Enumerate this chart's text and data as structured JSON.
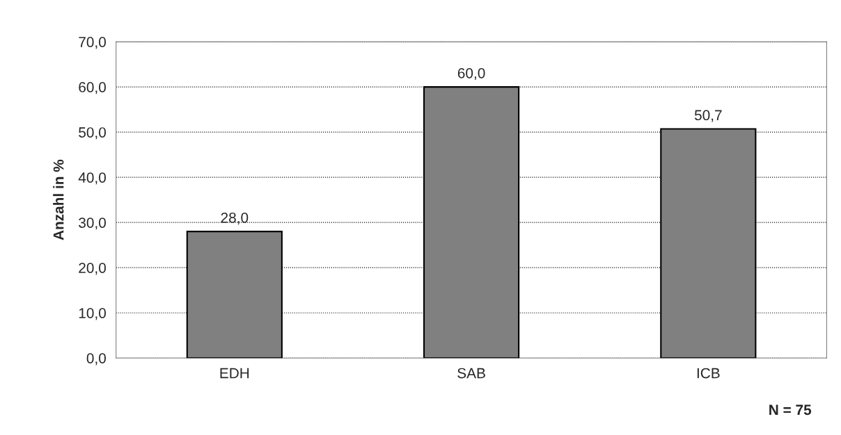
{
  "chart_data": {
    "type": "bar",
    "ylabel": "Anzahl in %",
    "categories": [
      "EDH",
      "SAB",
      "ICB"
    ],
    "values": [
      28.0,
      60.0,
      50.7
    ],
    "color": "#808080",
    "value_labels": [
      "28,0",
      "60,0",
      "50,7"
    ],
    "ylim": [
      0,
      70
    ],
    "yticks": [
      {
        "value": 0,
        "label": "0,0"
      },
      {
        "value": 10,
        "label": "10,0"
      },
      {
        "value": 20,
        "label": "20,0"
      },
      {
        "value": 30,
        "label": "30,0"
      },
      {
        "value": 40,
        "label": "40,0"
      },
      {
        "value": 50,
        "label": "50,0"
      },
      {
        "value": 60,
        "label": "60,0"
      },
      {
        "value": 70,
        "label": "70,0"
      }
    ],
    "grid": "y",
    "legend": false,
    "annotations": [
      "N = 75"
    ]
  }
}
